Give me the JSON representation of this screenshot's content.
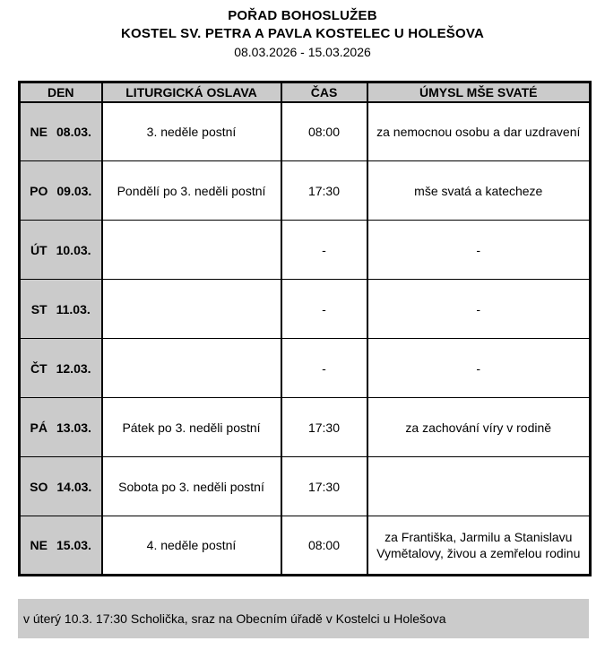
{
  "header": {
    "title": "POŘAD BOHOSLUŽEB",
    "church": "KOSTEL SV. PETRA A PAVLA KOSTELEC U HOLEŠOVA",
    "date_range": "08.03.2026 - 15.03.2026"
  },
  "table": {
    "headers": {
      "den": "DEN",
      "liturgy": "LITURGICKÁ OSLAVA",
      "time": "ČAS",
      "intention": "ÚMYSL MŠE SVATÉ"
    },
    "rows": [
      {
        "day": "NE",
        "date": "08.03.",
        "liturgy": "3. neděle postní",
        "time": "08:00",
        "intention": "za nemocnou osobu a dar uzdravení"
      },
      {
        "day": "PO",
        "date": "09.03.",
        "liturgy": "Pondělí po 3. neděli postní",
        "time": "17:30",
        "intention": "mše svatá a katecheze"
      },
      {
        "day": "ÚT",
        "date": "10.03.",
        "liturgy": "",
        "time": "-",
        "intention": "-"
      },
      {
        "day": "ST",
        "date": "11.03.",
        "liturgy": "",
        "time": "-",
        "intention": "-"
      },
      {
        "day": "ČT",
        "date": "12.03.",
        "liturgy": "",
        "time": "-",
        "intention": "-"
      },
      {
        "day": "PÁ",
        "date": "13.03.",
        "liturgy": "Pátek po 3. neděli postní",
        "time": "17:30",
        "intention": "za zachování víry v rodině"
      },
      {
        "day": "SO",
        "date": "14.03.",
        "liturgy": "Sobota po 3. neděli postní",
        "time": "17:30",
        "intention": ""
      },
      {
        "day": "NE",
        "date": "15.03.",
        "liturgy": "4. neděle postní",
        "time": "08:00",
        "intention": "za Františka, Jarmilu a Stanislavu Vymětalovy, živou a zemřelou rodinu"
      }
    ]
  },
  "footer": {
    "note": "v úterý 10.3. 17:30 Scholička, sraz na Obecním úřadě v Kostelci u Holešova"
  },
  "colors": {
    "cell_bg": "#cbcbcb",
    "border": "#000000",
    "text": "#000000",
    "page_bg": "#ffffff"
  }
}
